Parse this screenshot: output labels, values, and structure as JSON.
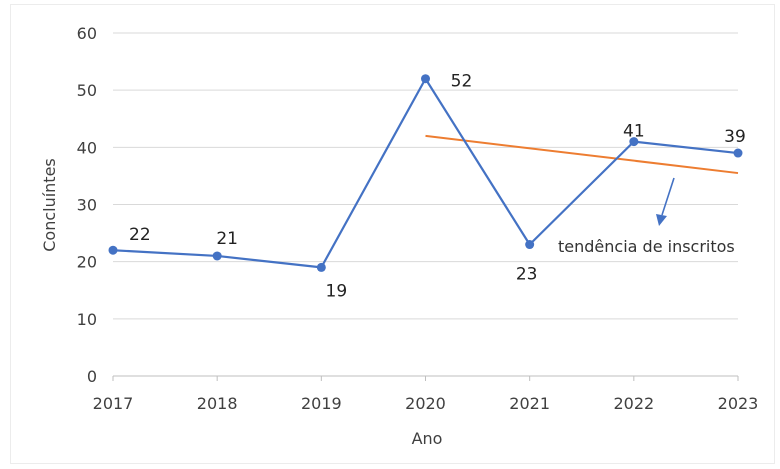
{
  "chart_data": {
    "type": "line",
    "xlabel": "Ano",
    "ylabel": "Concluíntes",
    "x": [
      "2017",
      "2018",
      "2019",
      "2020",
      "2021",
      "2022",
      "2023"
    ],
    "ylim": [
      0,
      60
    ],
    "yticks": [
      0,
      10,
      20,
      30,
      40,
      50,
      60
    ],
    "grid": true,
    "series": [
      {
        "values": [
          22,
          21,
          19,
          52,
          23,
          41,
          39
        ],
        "color": "#4472C4",
        "data_labels": [
          "22",
          "21",
          "19",
          "52",
          "23",
          "41",
          "39"
        ]
      }
    ],
    "trendline": {
      "color": "#ED7D31",
      "x_start": "2020",
      "x_end": "2023",
      "y_start": 42,
      "y_end": 35.5
    },
    "annotation": {
      "text": "tendência de inscritos",
      "arrow_color": "#4472C4"
    }
  }
}
